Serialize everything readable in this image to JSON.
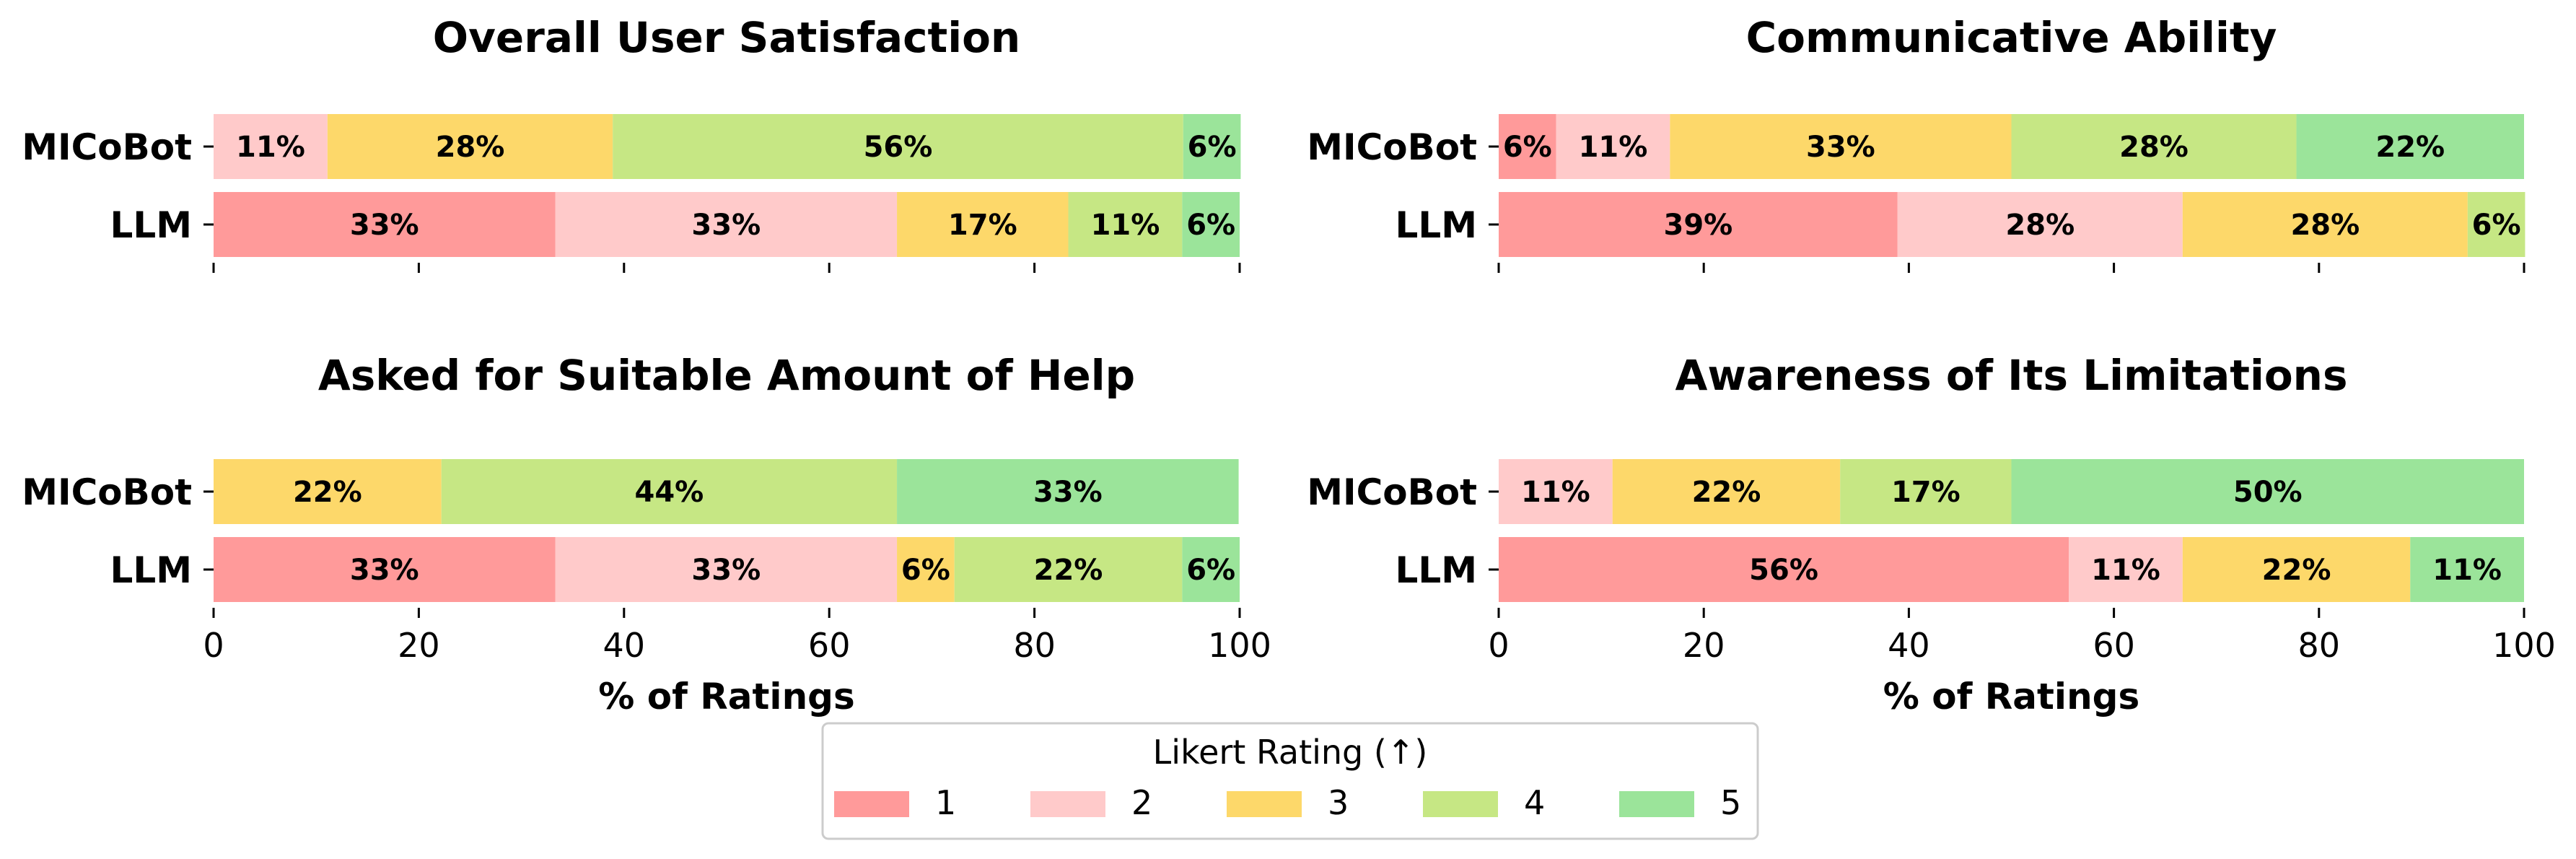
{
  "colors": [
    "#ff9a9a",
    "#ffcaca",
    "#fdd86a",
    "#c6e784",
    "#9be49a"
  ],
  "legend": {
    "title": "Likert Rating (↑)",
    "entries": [
      "1",
      "2",
      "3",
      "4",
      "5"
    ]
  },
  "chart_data": [
    {
      "type": "bar",
      "orientation": "horizontal-stacked",
      "title": "Overall User Satisfaction",
      "categories": [
        "MICoBot",
        "LLM"
      ],
      "xlim": [
        0,
        100
      ],
      "xticks": [
        "0",
        "20",
        "40",
        "60",
        "80",
        "100"
      ],
      "show_tick_labels": false,
      "xlabel": "",
      "series": [
        {
          "name": "1",
          "values": [
            0,
            33.3
          ],
          "labels": [
            "",
            "33%"
          ]
        },
        {
          "name": "2",
          "values": [
            11.1,
            33.3
          ],
          "labels": [
            "11%",
            "33%"
          ]
        },
        {
          "name": "3",
          "values": [
            27.8,
            16.7
          ],
          "labels": [
            "28%",
            "17%"
          ]
        },
        {
          "name": "4",
          "values": [
            55.6,
            11.1
          ],
          "labels": [
            "56%",
            "11%"
          ]
        },
        {
          "name": "5",
          "values": [
            5.6,
            5.6
          ],
          "labels": [
            "6%",
            "6%"
          ]
        }
      ]
    },
    {
      "type": "bar",
      "orientation": "horizontal-stacked",
      "title": "Communicative Ability",
      "categories": [
        "MICoBot",
        "LLM"
      ],
      "xlim": [
        0,
        100
      ],
      "xticks": [
        "0",
        "20",
        "40",
        "60",
        "80",
        "100"
      ],
      "show_tick_labels": false,
      "xlabel": "",
      "series": [
        {
          "name": "1",
          "values": [
            5.6,
            38.9
          ],
          "labels": [
            "6%",
            "39%"
          ]
        },
        {
          "name": "2",
          "values": [
            11.1,
            27.8
          ],
          "labels": [
            "11%",
            "28%"
          ]
        },
        {
          "name": "3",
          "values": [
            33.3,
            27.8
          ],
          "labels": [
            "33%",
            "28%"
          ]
        },
        {
          "name": "4",
          "values": [
            27.8,
            5.6
          ],
          "labels": [
            "28%",
            "6%"
          ]
        },
        {
          "name": "5",
          "values": [
            22.2,
            0
          ],
          "labels": [
            "22%",
            ""
          ]
        }
      ]
    },
    {
      "type": "bar",
      "orientation": "horizontal-stacked",
      "title": "Asked for Suitable Amount of Help",
      "categories": [
        "MICoBot",
        "LLM"
      ],
      "xlim": [
        0,
        100
      ],
      "xticks": [
        "0",
        "20",
        "40",
        "60",
        "80",
        "100"
      ],
      "show_tick_labels": true,
      "xlabel": "% of Ratings",
      "series": [
        {
          "name": "1",
          "values": [
            0,
            33.3
          ],
          "labels": [
            "",
            "33%"
          ]
        },
        {
          "name": "2",
          "values": [
            0,
            33.3
          ],
          "labels": [
            "",
            "33%"
          ]
        },
        {
          "name": "3",
          "values": [
            22.2,
            5.6
          ],
          "labels": [
            "22%",
            "6%"
          ]
        },
        {
          "name": "4",
          "values": [
            44.4,
            22.2
          ],
          "labels": [
            "44%",
            "22%"
          ]
        },
        {
          "name": "5",
          "values": [
            33.3,
            5.6
          ],
          "labels": [
            "33%",
            "6%"
          ]
        }
      ]
    },
    {
      "type": "bar",
      "orientation": "horizontal-stacked",
      "title": "Awareness of Its Limitations",
      "categories": [
        "MICoBot",
        "LLM"
      ],
      "xlim": [
        0,
        100
      ],
      "xticks": [
        "0",
        "20",
        "40",
        "60",
        "80",
        "100"
      ],
      "show_tick_labels": true,
      "xlabel": "% of Ratings",
      "series": [
        {
          "name": "1",
          "values": [
            0,
            55.6
          ],
          "labels": [
            "",
            "56%"
          ]
        },
        {
          "name": "2",
          "values": [
            11.1,
            11.1
          ],
          "labels": [
            "11%",
            "11%"
          ]
        },
        {
          "name": "3",
          "values": [
            22.2,
            22.2
          ],
          "labels": [
            "22%",
            "22%"
          ]
        },
        {
          "name": "4",
          "values": [
            16.7,
            0
          ],
          "labels": [
            "17%",
            ""
          ]
        },
        {
          "name": "5",
          "values": [
            50.0,
            11.1
          ],
          "labels": [
            "50%",
            "11%"
          ]
        }
      ]
    }
  ]
}
